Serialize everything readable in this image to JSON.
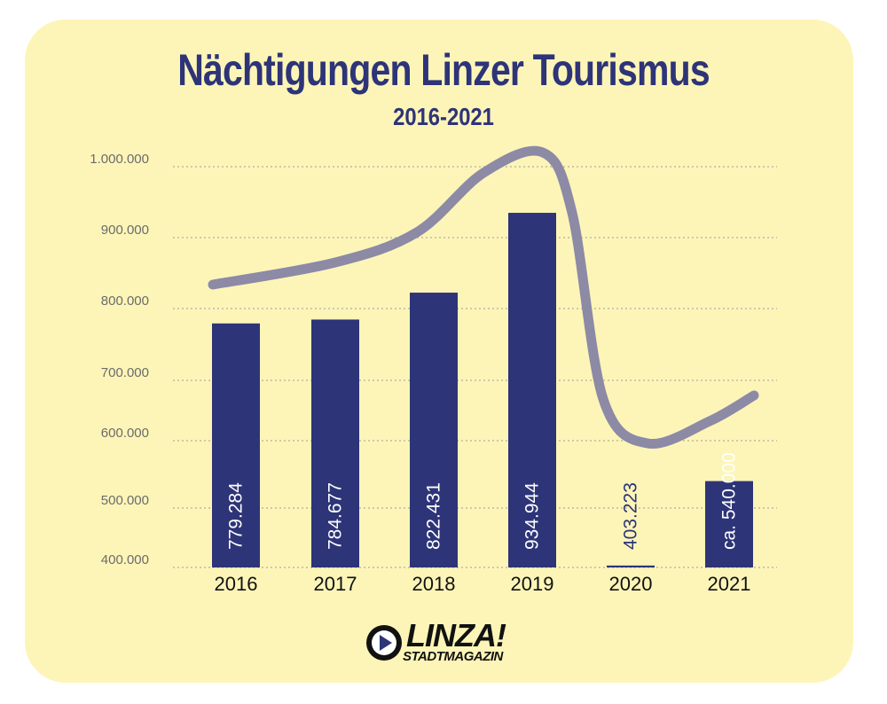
{
  "title": "Nächtigungen Linzer Tourismus",
  "subtitle": "2016-2021",
  "logo": {
    "word": "LINZA!",
    "sub": "STADTMAGAZIN",
    "icon": "play-circle-icon"
  },
  "colors": {
    "background": "#fdf5b8",
    "bar": "#2d3478",
    "trend": "#8d8aa6",
    "grid": "#9a9a9a",
    "axis_text": "#6b6b6b",
    "title": "#2d3478"
  },
  "chart_data": {
    "type": "bar",
    "title": "Nächtigungen Linzer Tourismus",
    "subtitle": "2016-2021",
    "categories": [
      "2016",
      "2017",
      "2018",
      "2019",
      "2020",
      "2021"
    ],
    "values": [
      779284,
      784677,
      822431,
      934944,
      403223,
      540000
    ],
    "data_labels": [
      "779.284",
      "784.677",
      "822.431",
      "934.944",
      "403.223",
      "ca. 540.000"
    ],
    "y_ticks": [
      {
        "value": 400000,
        "label": "400.000"
      },
      {
        "value": 500000,
        "label": "500.000"
      },
      {
        "value": 600000,
        "label": "600.000"
      },
      {
        "value": 700000,
        "label": "700.000"
      },
      {
        "value": 800000,
        "label": "800.000"
      },
      {
        "value": 900000,
        "label": "900.000"
      },
      {
        "value": 1000000,
        "label": "1.000.000"
      }
    ],
    "ylim": [
      400000,
      1000000
    ],
    "grid": true,
    "trend_line": true
  }
}
